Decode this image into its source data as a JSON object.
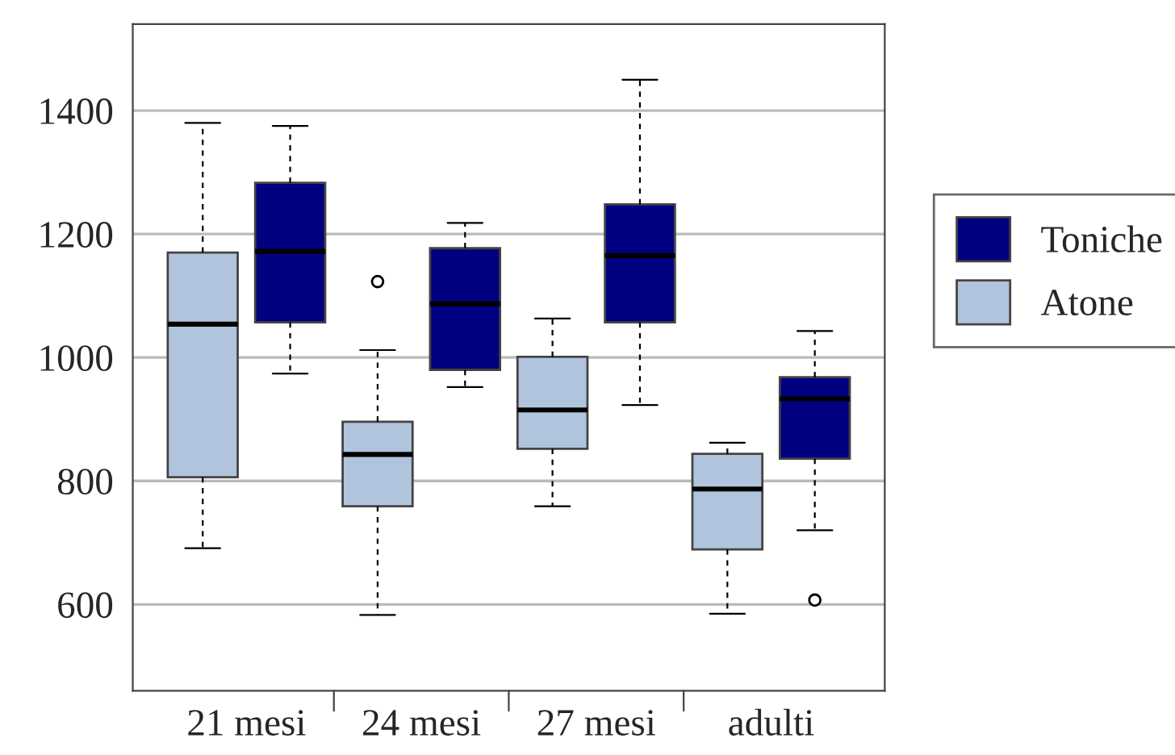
{
  "chart_data": {
    "type": "box",
    "categories": [
      "21 mesi",
      "24 mesi",
      "27 mesi",
      "adulti"
    ],
    "series": [
      {
        "name": "Atone",
        "color": "#b0c4de",
        "boxes": [
          {
            "low": 691,
            "q1": 806,
            "median": 1054,
            "q3": 1170,
            "high": 1380
          },
          {
            "low": 583,
            "q1": 759,
            "median": 843,
            "q3": 896,
            "high": 1012,
            "outliers": [
              1123
            ]
          },
          {
            "low": 759,
            "q1": 852,
            "median": 915,
            "q3": 1001,
            "high": 1063
          },
          {
            "low": 585,
            "q1": 689,
            "median": 787,
            "q3": 844,
            "high": 862
          }
        ]
      },
      {
        "name": "Toniche",
        "color": "#000080",
        "boxes": [
          {
            "low": 974,
            "q1": 1057,
            "median": 1172,
            "q3": 1283,
            "high": 1375
          },
          {
            "low": 952,
            "q1": 980,
            "median": 1087,
            "q3": 1177,
            "high": 1218
          },
          {
            "low": 923,
            "q1": 1057,
            "median": 1165,
            "q3": 1248,
            "high": 1450
          },
          {
            "low": 720,
            "q1": 836,
            "median": 933,
            "q3": 968,
            "high": 1043,
            "outliers": [
              607
            ]
          }
        ]
      }
    ],
    "ylim": [
      460,
      1540
    ],
    "yticks": [
      600,
      800,
      1000,
      1200,
      1400
    ],
    "grid": "y",
    "legend": "right"
  }
}
